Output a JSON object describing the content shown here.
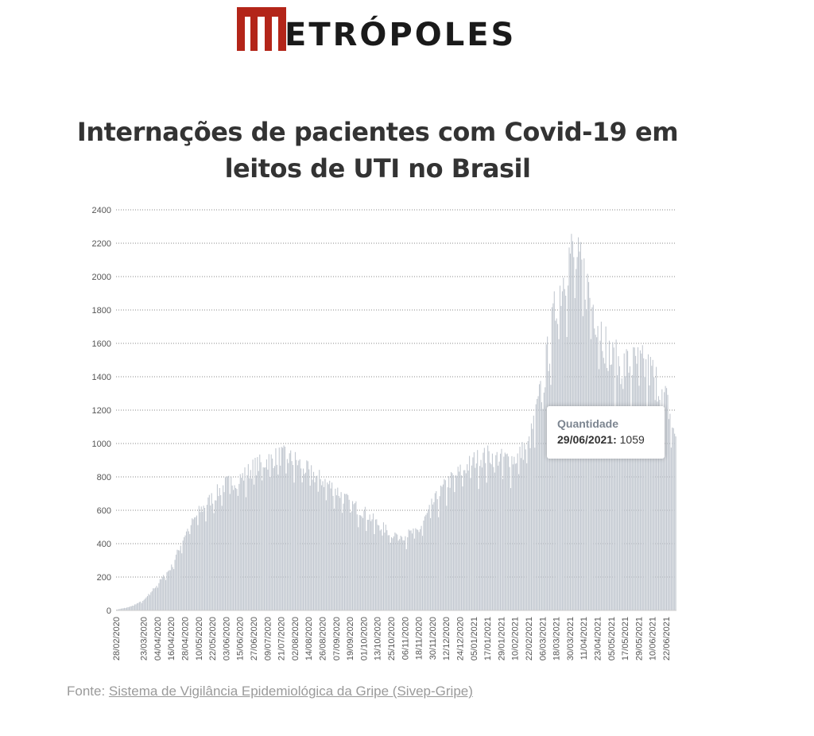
{
  "brand": {
    "name": "ETRÓPOLES",
    "logo": "metropoles-m-logo",
    "accent": "#b32519"
  },
  "chart_data": {
    "type": "bar",
    "title": "Internações de pacientes com Covid-19 em leitos de UTI no Brasil",
    "title_lines": [
      "Internações de pacientes com Covid-19 em",
      "leitos de UTI no Brasil"
    ],
    "x_start": "2020-02-28",
    "x_end": "2021-06-30",
    "xticks": [
      "28/02/2020",
      "23/03/2020",
      "04/04/2020",
      "16/04/2020",
      "28/04/2020",
      "10/05/2020",
      "22/05/2020",
      "03/06/2020",
      "15/06/2020",
      "27/06/2020",
      "09/07/2020",
      "21/07/2020",
      "02/08/2020",
      "14/08/2020",
      "26/08/2020",
      "07/09/2020",
      "19/09/2020",
      "01/10/2020",
      "13/10/2020",
      "25/10/2020",
      "06/11/2020",
      "18/11/2020",
      "30/11/2020",
      "12/12/2020",
      "24/12/2020",
      "05/01/2021",
      "17/01/2021",
      "29/01/2021",
      "10/02/2021",
      "22/02/2021",
      "06/03/2021",
      "18/03/2021",
      "30/03/2021",
      "11/04/2021",
      "23/04/2021",
      "05/05/2021",
      "17/05/2021",
      "29/05/2021",
      "10/06/2021",
      "22/06/2021"
    ],
    "yticks": [
      0,
      200,
      400,
      600,
      800,
      1000,
      1200,
      1400,
      1600,
      1800,
      2000,
      2200,
      2400
    ],
    "ylim": [
      0,
      2400
    ],
    "grid": "horizontal dotted",
    "bar_color": "#c2c8d0",
    "daily_approx": [
      [
        "2020-02-28",
        5
      ],
      [
        "2020-03-10",
        20
      ],
      [
        "2020-03-23",
        60
      ],
      [
        "2020-04-04",
        160
      ],
      [
        "2020-04-16",
        260
      ],
      [
        "2020-04-28",
        460
      ],
      [
        "2020-05-10",
        590
      ],
      [
        "2020-05-22",
        680
      ],
      [
        "2020-06-03",
        760
      ],
      [
        "2020-06-15",
        790
      ],
      [
        "2020-06-27",
        860
      ],
      [
        "2020-07-09",
        900
      ],
      [
        "2020-07-21",
        930
      ],
      [
        "2020-08-02",
        900
      ],
      [
        "2020-08-14",
        830
      ],
      [
        "2020-08-26",
        780
      ],
      [
        "2020-09-07",
        720
      ],
      [
        "2020-09-19",
        640
      ],
      [
        "2020-10-01",
        590
      ],
      [
        "2020-10-13",
        520
      ],
      [
        "2020-10-25",
        460
      ],
      [
        "2020-11-06",
        450
      ],
      [
        "2020-11-18",
        480
      ],
      [
        "2020-11-30",
        640
      ],
      [
        "2020-12-12",
        760
      ],
      [
        "2020-12-24",
        830
      ],
      [
        "2021-01-05",
        900
      ],
      [
        "2021-01-17",
        930
      ],
      [
        "2021-01-29",
        910
      ],
      [
        "2021-02-10",
        910
      ],
      [
        "2021-02-22",
        1000
      ],
      [
        "2021-03-06",
        1350
      ],
      [
        "2021-03-18",
        1850
      ],
      [
        "2021-03-30",
        2150
      ],
      [
        "2021-04-11",
        2000
      ],
      [
        "2021-04-23",
        1750
      ],
      [
        "2021-05-05",
        1500
      ],
      [
        "2021-05-17",
        1470
      ],
      [
        "2021-05-29",
        1480
      ],
      [
        "2021-06-10",
        1420
      ],
      [
        "2021-06-22",
        1250
      ],
      [
        "2021-06-29",
        1059
      ],
      [
        "2021-06-30",
        1040
      ]
    ],
    "tooltip": {
      "header": "Quantidade",
      "date": "29/06/2021",
      "value": 1059
    }
  },
  "source": {
    "prefix": "Fonte: ",
    "link_text": "Sistema de Vigilância Epidemiológica da Gripe (Sivep-Gripe)"
  }
}
